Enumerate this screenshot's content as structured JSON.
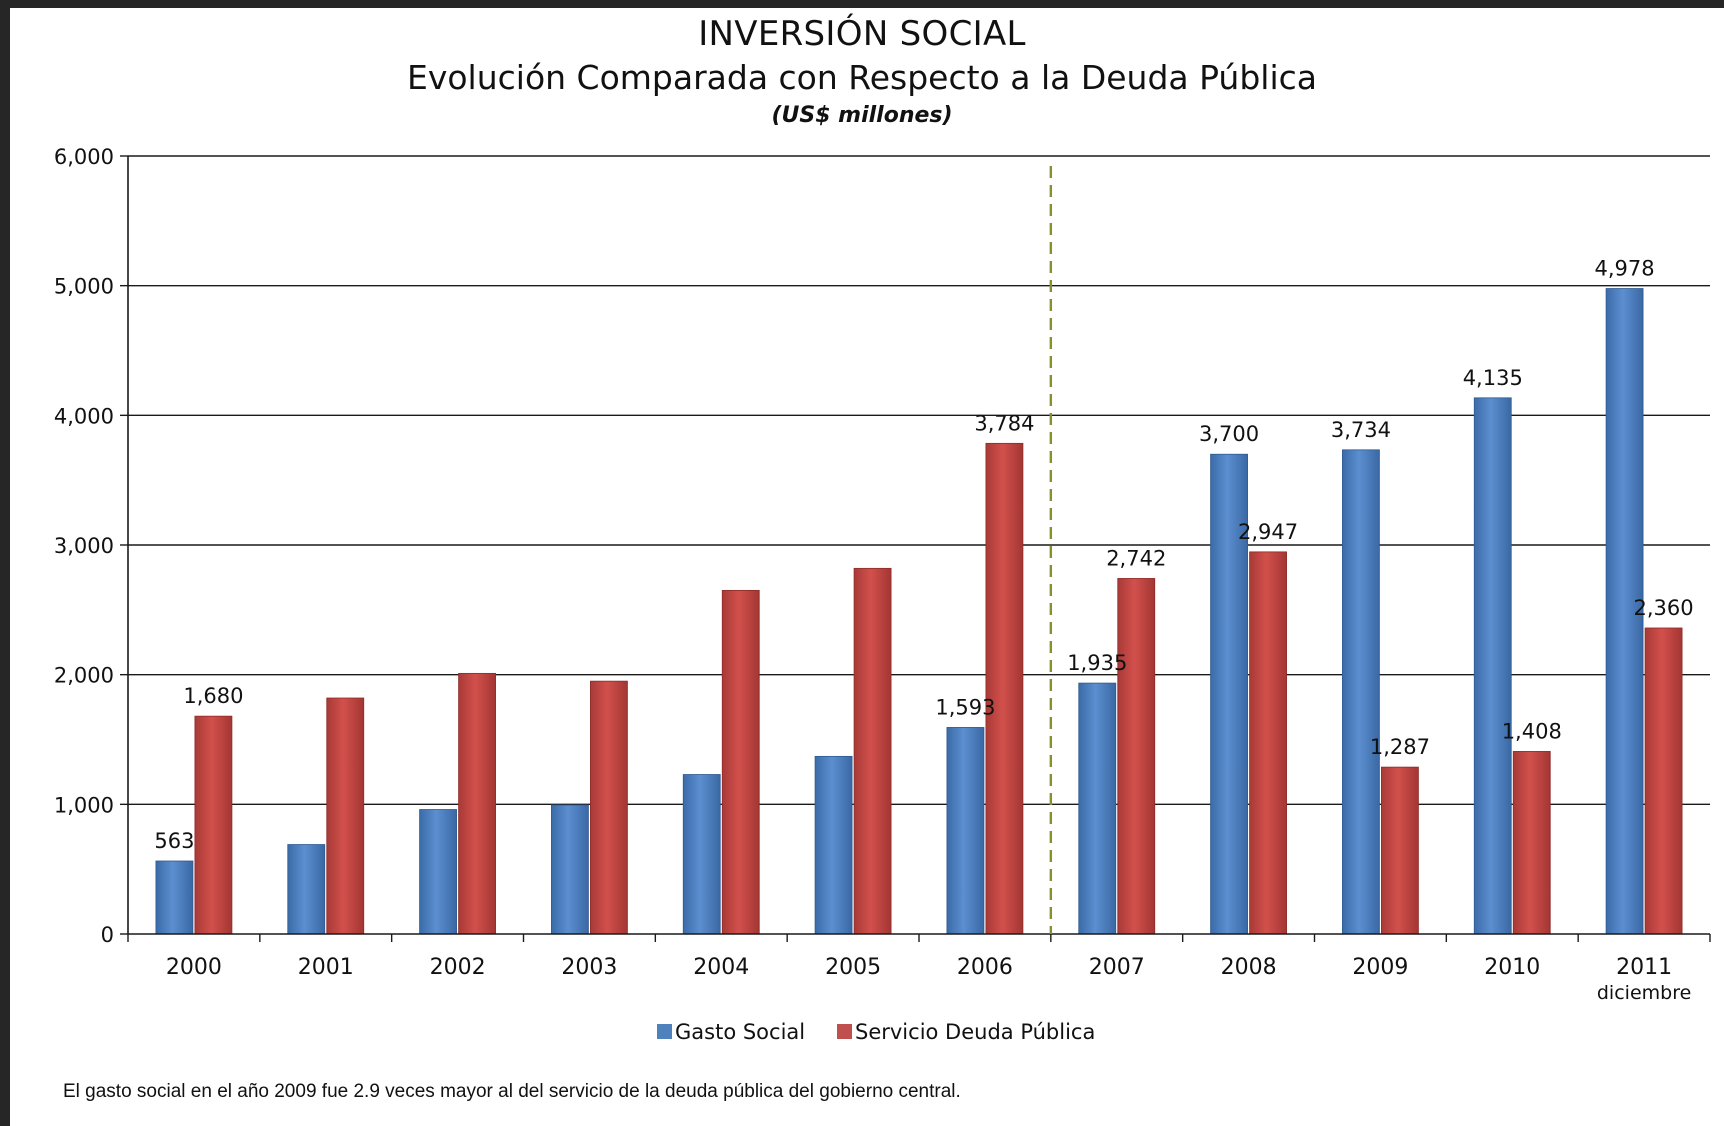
{
  "chart_data": {
    "type": "bar",
    "title": "INVERSIÓN SOCIAL",
    "subtitle": "Evolución Comparada con Respecto a la Deuda Pública",
    "units": "(US$ millones)",
    "categories": [
      "2000",
      "2001",
      "2002",
      "2003",
      "2004",
      "2005",
      "2006",
      "2007",
      "2008",
      "2009",
      "2010",
      "2011"
    ],
    "category_sublabels": {
      "11": "diciembre"
    },
    "series": [
      {
        "name": "Gasto Social",
        "color": "#4F81BD",
        "values": [
          563,
          690,
          960,
          995,
          1230,
          1370,
          1593,
          1935,
          3700,
          3734,
          4135,
          4978
        ],
        "data_labels": [
          "563",
          null,
          null,
          null,
          null,
          null,
          "1,593",
          "1,935",
          "3,700",
          "3,734",
          "4,135",
          "4,978"
        ]
      },
      {
        "name": "Servicio Deuda Pública",
        "color": "#C0504D",
        "values": [
          1680,
          1820,
          2010,
          1950,
          2650,
          2820,
          3784,
          2742,
          2947,
          1287,
          1408,
          2360
        ],
        "data_labels": [
          "1,680",
          null,
          null,
          null,
          null,
          null,
          "3,784",
          "2,742",
          "2,947",
          "1,287",
          "1,408",
          "2,360"
        ]
      }
    ],
    "ylim": [
      0,
      6000
    ],
    "yticks": [
      0,
      1000,
      2000,
      3000,
      4000,
      5000,
      6000
    ],
    "ytick_labels": [
      "0",
      "1,000",
      "2,000",
      "3,000",
      "4,000",
      "5,000",
      "6,000"
    ],
    "grid": true,
    "divider_after_category": "2006",
    "legend_position": "bottom"
  },
  "footnote": "El gasto social en el año 2009 fue 2.9 veces mayor al del servicio de la deuda pública del gobierno central."
}
